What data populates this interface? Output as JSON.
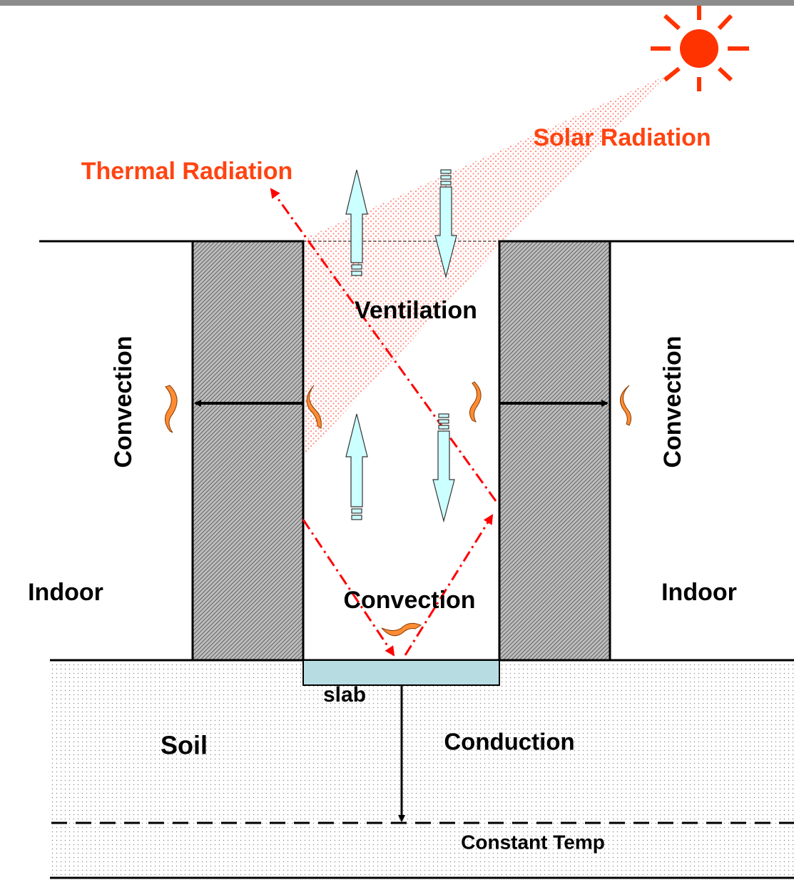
{
  "labels": {
    "solar_radiation": "Solar Radiation",
    "thermal_radiation": "Thermal Radiation",
    "ventilation": "Ventilation",
    "convection_left": "Convection",
    "convection_right": "Convection",
    "convection_center": "Convection",
    "indoor_left": "Indoor",
    "indoor_right": "Indoor",
    "slab": "slab",
    "soil": "Soil",
    "conduction": "Conduction",
    "constant_temp": "Constant Temp"
  }
}
